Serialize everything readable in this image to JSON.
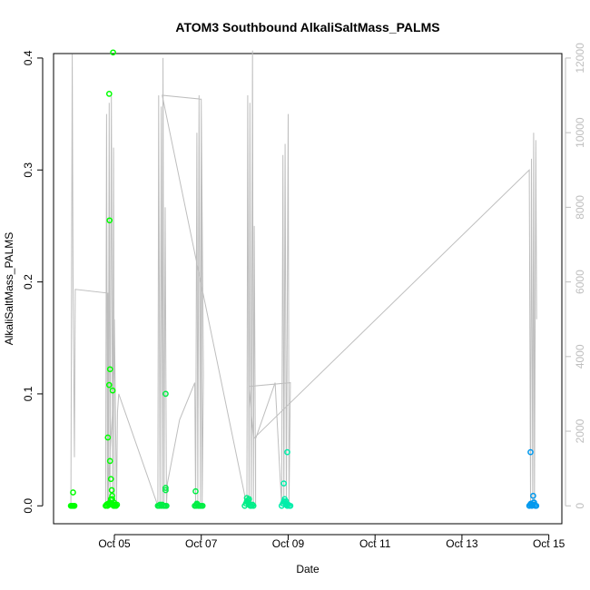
{
  "chart_data": {
    "type": "scatter",
    "title": "ATOM3 Southbound AlkaliSaltMass_PALMS",
    "xlabel": "Date",
    "ylabel": "AlkaliSaltMass_PALMS",
    "x_ticks": [
      "Oct 05",
      "Oct 07",
      "Oct 09",
      "Oct 11",
      "Oct 13",
      "Oct 15"
    ],
    "x_tick_days": [
      5,
      7,
      9,
      11,
      13,
      15
    ],
    "xlim": [
      3.6,
      15.3
    ],
    "ylim": [
      -0.016,
      0.404
    ],
    "y_ticks": [
      "0.0",
      "0.1",
      "0.2",
      "0.3",
      "0.4"
    ],
    "y_tick_values": [
      0,
      0.1,
      0.2,
      0.3,
      0.4
    ],
    "right_axis": {
      "ticks": [
        "0",
        "2000",
        "4000",
        "6000",
        "8000",
        "10000",
        "12000"
      ],
      "tick_values": [
        0,
        2000,
        4000,
        6000,
        8000,
        10000,
        12000
      ],
      "ylim": [
        -480,
        12120
      ],
      "color": "#bebebe"
    },
    "grid": false,
    "legend": "none",
    "right_series_color": "#bebebe",
    "right_series": [
      [
        4.0,
        0
      ],
      [
        4.03,
        12100
      ],
      [
        4.05,
        5800
      ],
      [
        4.08,
        1300
      ],
      [
        4.1,
        5800
      ],
      [
        4.85,
        5700
      ],
      [
        4.86,
        0
      ],
      [
        4.88,
        10800
      ],
      [
        4.9,
        0
      ],
      [
        4.93,
        11000
      ],
      [
        4.96,
        0
      ],
      [
        4.98,
        9600
      ],
      [
        5.0,
        0
      ],
      [
        4.8,
        0
      ],
      [
        4.82,
        10500
      ],
      [
        4.84,
        0
      ],
      [
        4.9,
        1400
      ],
      [
        4.95,
        2400
      ],
      [
        5.0,
        5000
      ],
      [
        5.05,
        0
      ],
      [
        5.07,
        2500
      ],
      [
        5.1,
        3000
      ],
      [
        6.0,
        0
      ],
      [
        6.02,
        11000
      ],
      [
        6.05,
        0
      ],
      [
        6.08,
        10700
      ],
      [
        6.1,
        0
      ],
      [
        6.12,
        12000
      ],
      [
        6.14,
        0
      ],
      [
        6.17,
        8000
      ],
      [
        6.2,
        0
      ],
      [
        6.22,
        600
      ],
      [
        6.5,
        2300
      ],
      [
        6.85,
        3300
      ],
      [
        6.87,
        0
      ],
      [
        6.9,
        10000
      ],
      [
        6.92,
        0
      ],
      [
        6.95,
        11000
      ],
      [
        6.98,
        0
      ],
      [
        7.0,
        10800
      ],
      [
        7.02,
        0
      ],
      [
        7.05,
        3500
      ],
      [
        7.0,
        10900
      ],
      [
        6.1,
        11000
      ],
      [
        8.05,
        0
      ],
      [
        8.07,
        11000
      ],
      [
        8.1,
        0
      ],
      [
        8.12,
        10800
      ],
      [
        8.15,
        0
      ],
      [
        8.18,
        12200
      ],
      [
        8.2,
        0
      ],
      [
        8.22,
        7500
      ],
      [
        8.25,
        0
      ],
      [
        8.25,
        1800
      ],
      [
        8.7,
        3300
      ],
      [
        8.85,
        0
      ],
      [
        8.88,
        9400
      ],
      [
        8.9,
        0
      ],
      [
        8.93,
        9700
      ],
      [
        8.96,
        0
      ],
      [
        9.0,
        10500
      ],
      [
        9.02,
        0
      ],
      [
        9.05,
        3300
      ],
      [
        8.1,
        3200
      ],
      [
        8.2,
        1800
      ],
      [
        14.55,
        9000
      ],
      [
        14.58,
        0
      ],
      [
        14.6,
        9300
      ],
      [
        14.63,
        0
      ],
      [
        14.65,
        10000
      ],
      [
        14.67,
        0
      ],
      [
        14.7,
        9800
      ],
      [
        14.72,
        5000
      ]
    ],
    "series": [
      {
        "name": "",
        "color": "#00ff00",
        "points": [
          [
            4.0,
            0.0
          ],
          [
            4.02,
            0.0
          ],
          [
            4.04,
            0.0
          ],
          [
            4.06,
            0.0
          ],
          [
            4.08,
            0.0
          ],
          [
            4.05,
            0.012
          ],
          [
            4.8,
            0.0
          ],
          [
            4.82,
            0.001
          ],
          [
            4.84,
            0.0
          ],
          [
            4.86,
            0.002
          ],
          [
            4.88,
            0.001
          ],
          [
            4.9,
            0.003
          ],
          [
            4.92,
            0.006
          ],
          [
            4.94,
            0.002
          ],
          [
            4.96,
            0.001
          ],
          [
            4.98,
            0.0
          ],
          [
            5.0,
            0.0
          ],
          [
            5.02,
            0.001
          ],
          [
            5.04,
            0.0
          ],
          [
            5.06,
            0.001
          ],
          [
            4.85,
            0.061
          ],
          [
            4.9,
            0.04
          ],
          [
            4.92,
            0.024
          ],
          [
            4.94,
            0.014
          ],
          [
            4.95,
            0.009
          ],
          [
            4.88,
            0.108
          ],
          [
            4.9,
            0.122
          ],
          [
            4.96,
            0.103
          ],
          [
            4.89,
            0.255
          ],
          [
            4.88,
            0.368
          ],
          [
            4.97,
            0.405
          ],
          [
            4.95,
            0.006
          ],
          [
            4.99,
            0.003
          ]
        ]
      },
      {
        "name": "",
        "color": "#00ee44",
        "points": [
          [
            6.0,
            0.0
          ],
          [
            6.03,
            0.0
          ],
          [
            6.05,
            0.001
          ],
          [
            6.08,
            0.0
          ],
          [
            6.1,
            0.001
          ],
          [
            6.13,
            0.0
          ],
          [
            6.15,
            0.0
          ],
          [
            6.18,
            0.0
          ],
          [
            6.2,
            0.0
          ],
          [
            6.18,
            0.1
          ],
          [
            6.18,
            0.016
          ],
          [
            6.18,
            0.014
          ],
          [
            6.85,
            0.0
          ],
          [
            6.88,
            0.0
          ],
          [
            6.9,
            0.001
          ],
          [
            6.93,
            0.0
          ],
          [
            6.95,
            0.0
          ],
          [
            6.98,
            0.0
          ],
          [
            7.0,
            0.0
          ],
          [
            7.03,
            0.0
          ],
          [
            6.87,
            0.013
          ],
          [
            6.9,
            0.002
          ]
        ]
      },
      {
        "name": "",
        "color": "#00ee88",
        "points": [
          [
            8.0,
            0.0
          ],
          [
            8.03,
            0.002
          ],
          [
            8.05,
            0.004
          ],
          [
            8.08,
            0.003
          ],
          [
            8.1,
            0.001
          ],
          [
            8.13,
            0.0
          ],
          [
            8.15,
            0.0
          ],
          [
            8.18,
            0.001
          ],
          [
            8.2,
            0.0
          ],
          [
            8.05,
            0.007
          ],
          [
            8.08,
            0.005
          ],
          [
            8.1,
            0.006
          ]
        ]
      },
      {
        "name": "",
        "color": "#00eeaa",
        "points": [
          [
            8.85,
            0.0
          ],
          [
            8.88,
            0.002
          ],
          [
            8.9,
            0.004
          ],
          [
            8.93,
            0.003
          ],
          [
            8.95,
            0.001
          ],
          [
            8.98,
            0.0
          ],
          [
            9.0,
            0.001
          ],
          [
            9.03,
            0.0
          ],
          [
            9.05,
            0.0
          ],
          [
            8.92,
            0.006
          ],
          [
            8.95,
            0.004
          ],
          [
            8.9,
            0.02
          ],
          [
            8.98,
            0.048
          ]
        ]
      },
      {
        "name": "",
        "color": "#0099ee",
        "points": [
          [
            14.55,
            0.0
          ],
          [
            14.57,
            0.001
          ],
          [
            14.59,
            0.002
          ],
          [
            14.61,
            0.0
          ],
          [
            14.63,
            0.001
          ],
          [
            14.65,
            0.003
          ],
          [
            14.67,
            0.001
          ],
          [
            14.69,
            0.0
          ],
          [
            14.71,
            0.0
          ],
          [
            14.58,
            0.048
          ],
          [
            14.64,
            0.009
          ],
          [
            14.66,
            0.003
          ]
        ]
      }
    ]
  }
}
